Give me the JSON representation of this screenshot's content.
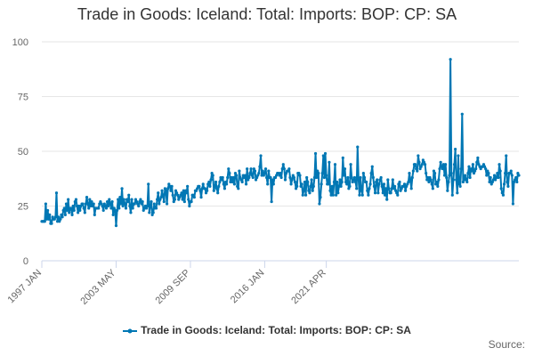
{
  "chart_data": {
    "type": "line",
    "title": "Trade in Goods: Iceland: Total: Imports: BOP: CP: SA",
    "xlabel": "",
    "ylabel": "",
    "ylim": [
      0,
      100
    ],
    "yticks": [
      0,
      25,
      50,
      75,
      100
    ],
    "xtick_labels": [
      "1997 JAN",
      "2003 MAY",
      "2009 SEP",
      "2016 JAN",
      "2021 APR"
    ],
    "xtick_index": [
      0,
      76,
      152,
      228,
      291
    ],
    "grid": "horizontal",
    "legend_position": "bottom",
    "credits": "Source:",
    "series_color": "#0077b4",
    "series": [
      {
        "name": "Trade in Goods: Iceland: Total: Imports: BOP: CP: SA",
        "values": [
          18,
          18,
          18,
          18,
          26,
          19,
          23,
          19,
          21,
          17,
          17,
          20,
          19,
          19,
          20,
          31,
          18,
          20,
          18,
          19,
          21,
          20,
          23,
          24,
          21,
          26,
          23,
          28,
          22,
          24,
          24,
          21,
          25,
          23,
          27,
          28,
          25,
          22,
          25,
          23,
          25,
          26,
          26,
          24,
          22,
          26,
          29,
          26,
          24,
          28,
          25,
          27,
          25,
          26,
          21,
          24,
          24,
          24,
          24,
          26,
          27,
          26,
          25,
          23,
          26,
          25,
          24,
          27,
          25,
          28,
          26,
          24,
          27,
          21,
          24,
          23,
          16,
          23,
          28,
          24,
          29,
          26,
          33,
          25,
          28,
          26,
          24,
          28,
          27,
          30,
          25,
          22,
          28,
          24,
          26,
          26,
          28,
          27,
          26,
          25,
          27,
          28,
          26,
          27,
          23,
          24,
          25,
          24,
          25,
          35,
          22,
          25,
          27,
          21,
          22,
          26,
          24,
          24,
          28,
          31,
          26,
          28,
          29,
          32,
          30,
          27,
          33,
          32,
          26,
          33,
          35,
          34,
          32,
          34,
          30,
          27,
          28,
          32,
          31,
          30,
          28,
          29,
          30,
          31,
          28,
          32,
          27,
          32,
          31,
          34,
          28,
          25,
          27,
          27,
          30,
          30,
          29,
          32,
          32,
          33,
          34,
          34,
          32,
          29,
          33,
          35,
          33,
          33,
          31,
          32,
          35,
          36,
          34,
          37,
          40,
          39,
          32,
          34,
          36,
          33,
          31,
          34,
          36,
          38,
          37,
          38,
          35,
          33,
          36,
          35,
          38,
          42,
          40,
          36,
          38,
          36,
          38,
          35,
          40,
          39,
          34,
          33,
          41,
          38,
          37,
          36,
          39,
          38,
          39,
          35,
          42,
          37,
          38,
          40,
          42,
          39,
          38,
          42,
          41,
          37,
          38,
          39,
          40,
          43,
          48,
          39,
          41,
          39,
          40,
          42,
          38,
          35,
          41,
          38,
          38,
          27,
          37,
          35,
          38,
          38,
          39,
          40,
          40,
          39,
          40,
          38,
          42,
          44,
          42,
          37,
          40,
          41,
          41,
          42,
          38,
          35,
          37,
          39,
          38,
          36,
          33,
          34,
          40,
          40,
          39,
          34,
          35,
          30,
          32,
          36,
          30,
          38,
          36,
          32,
          31,
          34,
          37,
          32,
          34,
          38,
          49,
          38,
          41,
          40,
          26,
          29,
          35,
          40,
          48,
          38,
          49,
          39,
          35,
          35,
          45,
          32,
          30,
          34,
          30,
          36,
          44,
          30,
          36,
          31,
          34,
          37,
          34,
          36,
          47,
          39,
          42,
          36,
          35,
          38,
          33,
          34,
          44,
          38,
          36,
          37,
          38,
          36,
          33,
          52,
          37,
          30,
          38,
          32,
          30,
          40,
          38,
          36,
          36,
          32,
          30,
          33,
          35,
          40,
          43,
          38,
          34,
          31,
          36,
          37,
          31,
          35,
          37,
          38,
          34,
          31,
          35,
          30,
          33,
          28,
          37,
          33,
          31,
          31,
          33,
          37,
          33,
          34,
          32,
          31,
          30,
          35,
          36,
          32,
          33,
          34,
          34,
          35,
          32,
          34,
          35,
          36,
          40,
          37,
          33,
          38,
          41,
          44,
          44,
          42,
          41,
          48,
          45,
          42,
          43,
          44,
          46,
          45,
          44,
          40,
          37,
          38,
          36,
          38,
          37,
          35,
          33,
          41,
          40,
          35,
          36,
          34,
          37,
          42,
          45,
          43,
          42,
          44,
          39,
          44,
          38,
          32,
          36,
          39,
          92,
          40,
          30,
          37,
          44,
          51,
          37,
          31,
          48,
          35,
          34,
          42,
          67,
          36,
          37,
          39,
          37,
          36,
          40,
          43,
          38,
          42,
          41,
          44,
          40,
          41,
          42,
          45,
          47,
          44,
          43,
          42,
          43,
          43,
          44,
          43,
          42,
          39,
          41,
          40,
          36,
          38,
          35,
          36,
          37,
          39,
          37,
          38,
          40,
          38,
          44,
          41,
          33,
          31,
          30,
          35,
          40,
          48,
          36,
          34,
          40,
          40,
          41,
          39,
          26,
          36,
          37,
          38,
          36,
          40,
          39
        ]
      }
    ]
  }
}
